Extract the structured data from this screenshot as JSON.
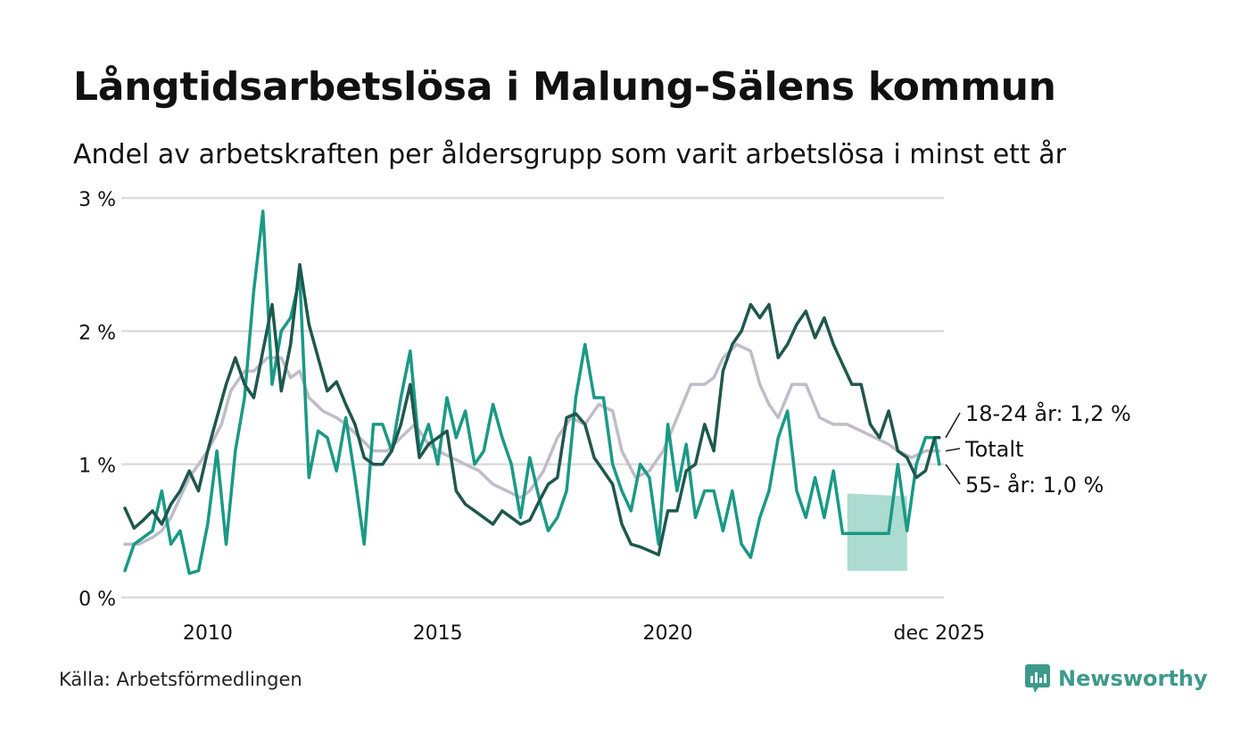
{
  "header": {
    "title": "Långtidsarbetslösa i Malung-Sälens kommun",
    "subtitle": "Andel av arbetskraften per åldersgrupp som varit arbetslösa i minst ett år"
  },
  "footer": {
    "source": "Källa: Arbetsförmedlingen",
    "brand": "Newsworthy"
  },
  "colors": {
    "totalt": "#c0bcc8",
    "age_18_24": "#1f574d",
    "age_55": "#1a9985",
    "band": "#a6d9cf",
    "grid": "#dcdcdc",
    "brand": "#3d9a8b"
  },
  "chart_data": {
    "type": "line",
    "title": "Långtidsarbetslösa i Malung-Sälens kommun",
    "subtitle": "Andel av arbetskraften per åldersgrupp som varit arbetslösa i minst ett år",
    "ylabel": "",
    "xlabel": "",
    "ylim": [
      0,
      3
    ],
    "xlim": [
      2008.2,
      2026.0
    ],
    "y_ticks": [
      0,
      1,
      2,
      3
    ],
    "y_tick_labels": [
      "0 %",
      "1 %",
      "2 %",
      "3 %"
    ],
    "x_ticks": [
      2010,
      2015,
      2020,
      2025.9
    ],
    "x_tick_labels": [
      "2010",
      "2015",
      "2020",
      "dec 2025"
    ],
    "series": [
      {
        "name": "Totalt",
        "label": "Totalt",
        "color_key": "totalt",
        "x": [
          2008.2,
          2008.5,
          2008.8,
          2009.0,
          2009.2,
          2009.4,
          2009.6,
          2009.8,
          2010.0,
          2010.3,
          2010.5,
          2010.8,
          2011.0,
          2011.3,
          2011.6,
          2011.8,
          2012.0,
          2012.2,
          2012.5,
          2012.8,
          2013.0,
          2013.3,
          2013.6,
          2013.9,
          2014.2,
          2014.5,
          2014.8,
          2015.0,
          2015.3,
          2015.6,
          2015.9,
          2016.2,
          2016.5,
          2016.8,
          2017.0,
          2017.3,
          2017.6,
          2017.9,
          2018.2,
          2018.5,
          2018.8,
          2019.0,
          2019.3,
          2019.6,
          2019.9,
          2020.2,
          2020.5,
          2020.8,
          2021.0,
          2021.2,
          2021.5,
          2021.8,
          2022.0,
          2022.2,
          2022.4,
          2022.7,
          2023.0,
          2023.3,
          2023.6,
          2023.9,
          2024.2,
          2024.5,
          2024.8,
          2025.0,
          2025.3,
          2025.6,
          2025.9
        ],
        "y": [
          0.4,
          0.4,
          0.45,
          0.5,
          0.6,
          0.75,
          0.9,
          1.0,
          1.1,
          1.3,
          1.55,
          1.7,
          1.7,
          1.8,
          1.8,
          1.65,
          1.7,
          1.5,
          1.4,
          1.35,
          1.3,
          1.2,
          1.1,
          1.1,
          1.2,
          1.3,
          1.15,
          1.1,
          1.05,
          1.0,
          0.95,
          0.85,
          0.8,
          0.75,
          0.8,
          0.95,
          1.2,
          1.35,
          1.3,
          1.45,
          1.4,
          1.1,
          0.9,
          0.95,
          1.1,
          1.35,
          1.6,
          1.6,
          1.65,
          1.8,
          1.9,
          1.85,
          1.6,
          1.45,
          1.35,
          1.6,
          1.6,
          1.35,
          1.3,
          1.3,
          1.25,
          1.2,
          1.15,
          1.1,
          1.05,
          1.1,
          1.1
        ]
      },
      {
        "name": "18-24 år",
        "label": "18-24 år: 1,2 %",
        "color_key": "age_18_24",
        "x": [
          2008.2,
          2008.4,
          2008.6,
          2008.8,
          2009.0,
          2009.2,
          2009.4,
          2009.6,
          2009.8,
          2010.0,
          2010.2,
          2010.4,
          2010.6,
          2010.8,
          2011.0,
          2011.2,
          2011.4,
          2011.6,
          2011.8,
          2012.0,
          2012.2,
          2012.4,
          2012.6,
          2012.8,
          2013.0,
          2013.2,
          2013.4,
          2013.6,
          2013.8,
          2014.0,
          2014.2,
          2014.4,
          2014.6,
          2014.8,
          2015.0,
          2015.2,
          2015.4,
          2015.6,
          2015.8,
          2016.0,
          2016.2,
          2016.4,
          2016.6,
          2016.8,
          2017.0,
          2017.2,
          2017.4,
          2017.6,
          2017.8,
          2018.0,
          2018.2,
          2018.4,
          2018.6,
          2018.8,
          2019.0,
          2019.2,
          2019.4,
          2019.6,
          2019.8,
          2020.0,
          2020.2,
          2020.4,
          2020.6,
          2020.8,
          2021.0,
          2021.2,
          2021.4,
          2021.6,
          2021.8,
          2022.0,
          2022.2,
          2022.4,
          2022.6,
          2022.8,
          2023.0,
          2023.2,
          2023.4,
          2023.6,
          2023.8,
          2024.0,
          2024.2,
          2024.4,
          2024.6,
          2024.8,
          2025.0,
          2025.2,
          2025.4,
          2025.6,
          2025.8,
          2025.9
        ],
        "y": [
          0.67,
          0.52,
          0.58,
          0.65,
          0.55,
          0.7,
          0.8,
          0.95,
          0.8,
          1.1,
          1.35,
          1.6,
          1.8,
          1.6,
          1.5,
          1.85,
          2.2,
          1.55,
          1.9,
          2.5,
          2.05,
          1.8,
          1.55,
          1.62,
          1.45,
          1.3,
          1.05,
          1.0,
          1.0,
          1.1,
          1.3,
          1.6,
          1.05,
          1.15,
          1.2,
          1.25,
          0.8,
          0.7,
          0.65,
          0.6,
          0.55,
          0.65,
          0.6,
          0.55,
          0.58,
          0.72,
          0.85,
          0.9,
          1.35,
          1.38,
          1.3,
          1.05,
          0.95,
          0.85,
          0.55,
          0.4,
          0.38,
          0.35,
          0.32,
          0.65,
          0.65,
          0.95,
          1.0,
          1.3,
          1.1,
          1.7,
          1.9,
          2.0,
          2.2,
          2.1,
          2.2,
          1.8,
          1.9,
          2.05,
          2.15,
          1.95,
          2.1,
          1.9,
          1.75,
          1.6,
          1.6,
          1.3,
          1.2,
          1.4,
          1.1,
          1.05,
          0.9,
          0.95,
          1.2,
          1.2
        ]
      },
      {
        "name": "55- år",
        "label": "55- år: 1,0 %",
        "color_key": "age_55",
        "x": [
          2008.2,
          2008.4,
          2008.6,
          2008.8,
          2009.0,
          2009.2,
          2009.4,
          2009.6,
          2009.8,
          2010.0,
          2010.2,
          2010.4,
          2010.6,
          2010.8,
          2011.0,
          2011.2,
          2011.4,
          2011.6,
          2011.8,
          2012.0,
          2012.2,
          2012.4,
          2012.6,
          2012.8,
          2013.0,
          2013.2,
          2013.4,
          2013.6,
          2013.8,
          2014.0,
          2014.2,
          2014.4,
          2014.6,
          2014.8,
          2015.0,
          2015.2,
          2015.4,
          2015.6,
          2015.8,
          2016.0,
          2016.2,
          2016.4,
          2016.6,
          2016.8,
          2017.0,
          2017.2,
          2017.4,
          2017.6,
          2017.8,
          2018.0,
          2018.2,
          2018.4,
          2018.6,
          2018.8,
          2019.0,
          2019.2,
          2019.4,
          2019.6,
          2019.8,
          2020.0,
          2020.2,
          2020.4,
          2020.6,
          2020.8,
          2021.0,
          2021.2,
          2021.4,
          2021.6,
          2021.8,
          2022.0,
          2022.2,
          2022.4,
          2022.6,
          2022.8,
          2023.0,
          2023.2,
          2023.4,
          2023.6,
          2023.8,
          2024.0,
          2024.2,
          2024.4,
          2024.6,
          2024.8,
          2025.0,
          2025.2,
          2025.4,
          2025.6,
          2025.8,
          2025.9
        ],
        "y": [
          0.2,
          0.4,
          0.45,
          0.5,
          0.8,
          0.4,
          0.5,
          0.18,
          0.2,
          0.55,
          1.1,
          0.4,
          1.1,
          1.5,
          2.3,
          2.9,
          1.6,
          2.0,
          2.1,
          2.4,
          0.9,
          1.25,
          1.2,
          0.95,
          1.35,
          0.9,
          0.4,
          1.3,
          1.3,
          1.1,
          1.5,
          1.85,
          1.1,
          1.3,
          1.0,
          1.5,
          1.2,
          1.4,
          1.0,
          1.1,
          1.45,
          1.2,
          1.0,
          0.6,
          1.05,
          0.75,
          0.5,
          0.6,
          0.8,
          1.5,
          1.9,
          1.5,
          1.5,
          1.0,
          0.8,
          0.65,
          1.0,
          0.9,
          0.4,
          1.3,
          0.8,
          1.15,
          0.6,
          0.8,
          0.8,
          0.5,
          0.8,
          0.4,
          0.3,
          0.6,
          0.8,
          1.2,
          1.4,
          0.8,
          0.6,
          0.9,
          0.6,
          0.95,
          0.48,
          0.48,
          0.48,
          0.48,
          0.48,
          0.48,
          1.0,
          0.5,
          1.0,
          1.2,
          1.2,
          1.0
        ]
      }
    ],
    "band": {
      "name": "55- år osäkerhetsintervall",
      "x": [
        2023.9,
        2025.2
      ],
      "y_low": [
        0.2,
        0.2
      ],
      "y_high": [
        0.78,
        0.76
      ]
    },
    "end_labels": [
      {
        "series": "18-24 år",
        "text": "18-24 år: 1,2 %"
      },
      {
        "series": "Totalt",
        "text": "Totalt"
      },
      {
        "series": "55- år",
        "text": "55- år: 1,0 %"
      }
    ]
  }
}
